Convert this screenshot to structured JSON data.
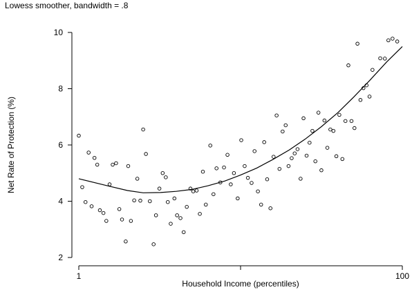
{
  "chart_data": {
    "type": "scatter",
    "subtitle": "Lowess smoother, bandwidth = .8",
    "xlabel": "Household Income (percentiles)",
    "ylabel": "Net Rate of Protection (%)",
    "x_scale": "log",
    "xlim": [
      1,
      100
    ],
    "ylim": [
      2,
      10
    ],
    "x_ticks": [
      {
        "value": 1,
        "label": "1"
      },
      {
        "value": 10,
        "label": ""
      },
      {
        "value": 100,
        "label": "100"
      }
    ],
    "y_ticks": [
      2,
      4,
      6,
      8,
      10
    ],
    "grid": false,
    "marker": "hollow-circle",
    "series": [
      {
        "kind": "points",
        "points": [
          {
            "x": 1,
            "y": 6.33
          },
          {
            "x": 1.05,
            "y": 4.5
          },
          {
            "x": 1.1,
            "y": 3.97
          },
          {
            "x": 1.15,
            "y": 5.73
          },
          {
            "x": 1.2,
            "y": 3.82
          },
          {
            "x": 1.25,
            "y": 5.54
          },
          {
            "x": 1.3,
            "y": 5.3
          },
          {
            "x": 1.35,
            "y": 3.68
          },
          {
            "x": 1.42,
            "y": 3.58
          },
          {
            "x": 1.48,
            "y": 3.3
          },
          {
            "x": 1.55,
            "y": 4.6
          },
          {
            "x": 1.62,
            "y": 5.3
          },
          {
            "x": 1.7,
            "y": 5.35
          },
          {
            "x": 1.78,
            "y": 3.72
          },
          {
            "x": 1.85,
            "y": 3.35
          },
          {
            "x": 1.95,
            "y": 2.57
          },
          {
            "x": 2.02,
            "y": 5.25
          },
          {
            "x": 2.1,
            "y": 3.3
          },
          {
            "x": 2.2,
            "y": 4.03
          },
          {
            "x": 2.3,
            "y": 4.8
          },
          {
            "x": 2.4,
            "y": 4.02
          },
          {
            "x": 2.5,
            "y": 6.55
          },
          {
            "x": 2.6,
            "y": 5.68
          },
          {
            "x": 2.75,
            "y": 4.0
          },
          {
            "x": 2.9,
            "y": 2.47
          },
          {
            "x": 3.0,
            "y": 3.5
          },
          {
            "x": 3.15,
            "y": 4.45
          },
          {
            "x": 3.3,
            "y": 5.0
          },
          {
            "x": 3.45,
            "y": 4.85
          },
          {
            "x": 3.55,
            "y": 3.97
          },
          {
            "x": 3.7,
            "y": 3.2
          },
          {
            "x": 3.9,
            "y": 4.1
          },
          {
            "x": 4.05,
            "y": 3.5
          },
          {
            "x": 4.25,
            "y": 3.4
          },
          {
            "x": 4.45,
            "y": 2.9
          },
          {
            "x": 4.65,
            "y": 3.8
          },
          {
            "x": 4.9,
            "y": 4.45
          },
          {
            "x": 5.1,
            "y": 4.35
          },
          {
            "x": 5.35,
            "y": 4.38
          },
          {
            "x": 5.6,
            "y": 3.55
          },
          {
            "x": 5.85,
            "y": 5.05
          },
          {
            "x": 6.1,
            "y": 3.88
          },
          {
            "x": 6.5,
            "y": 5.98
          },
          {
            "x": 6.8,
            "y": 4.25
          },
          {
            "x": 7.1,
            "y": 5.17
          },
          {
            "x": 7.5,
            "y": 4.67
          },
          {
            "x": 7.9,
            "y": 5.2
          },
          {
            "x": 8.3,
            "y": 5.65
          },
          {
            "x": 8.7,
            "y": 4.6
          },
          {
            "x": 9.1,
            "y": 5.0
          },
          {
            "x": 9.6,
            "y": 4.1
          },
          {
            "x": 10.1,
            "y": 6.17
          },
          {
            "x": 10.6,
            "y": 5.25
          },
          {
            "x": 11.1,
            "y": 4.83
          },
          {
            "x": 11.7,
            "y": 4.65
          },
          {
            "x": 12.2,
            "y": 5.78
          },
          {
            "x": 12.8,
            "y": 4.35
          },
          {
            "x": 13.4,
            "y": 3.88
          },
          {
            "x": 14.0,
            "y": 6.1
          },
          {
            "x": 14.6,
            "y": 4.78
          },
          {
            "x": 15.3,
            "y": 3.75
          },
          {
            "x": 16.0,
            "y": 5.58
          },
          {
            "x": 16.7,
            "y": 7.05
          },
          {
            "x": 17.4,
            "y": 5.15
          },
          {
            "x": 18.2,
            "y": 6.48
          },
          {
            "x": 19.0,
            "y": 6.7
          },
          {
            "x": 19.8,
            "y": 5.25
          },
          {
            "x": 20.7,
            "y": 5.53
          },
          {
            "x": 21.6,
            "y": 5.7
          },
          {
            "x": 22.5,
            "y": 5.85
          },
          {
            "x": 23.5,
            "y": 4.8
          },
          {
            "x": 24.5,
            "y": 6.95
          },
          {
            "x": 25.6,
            "y": 5.62
          },
          {
            "x": 26.7,
            "y": 6.08
          },
          {
            "x": 27.8,
            "y": 6.5
          },
          {
            "x": 29.0,
            "y": 5.42
          },
          {
            "x": 30.3,
            "y": 7.15
          },
          {
            "x": 31.6,
            "y": 5.1
          },
          {
            "x": 33.0,
            "y": 6.87
          },
          {
            "x": 34.4,
            "y": 5.9
          },
          {
            "x": 35.9,
            "y": 6.55
          },
          {
            "x": 37.5,
            "y": 6.5
          },
          {
            "x": 39.1,
            "y": 5.6
          },
          {
            "x": 40.8,
            "y": 7.07
          },
          {
            "x": 42.6,
            "y": 5.5
          },
          {
            "x": 44.5,
            "y": 6.85
          },
          {
            "x": 46.4,
            "y": 8.83
          },
          {
            "x": 48.5,
            "y": 6.85
          },
          {
            "x": 50.6,
            "y": 6.6
          },
          {
            "x": 52.8,
            "y": 9.6
          },
          {
            "x": 55.1,
            "y": 7.6
          },
          {
            "x": 57.5,
            "y": 8.02
          },
          {
            "x": 60.1,
            "y": 8.12
          },
          {
            "x": 62.7,
            "y": 7.72
          },
          {
            "x": 65.4,
            "y": 8.67
          },
          {
            "x": 73.0,
            "y": 9.08
          },
          {
            "x": 78.0,
            "y": 9.07
          },
          {
            "x": 82.0,
            "y": 9.72
          },
          {
            "x": 87.0,
            "y": 9.78
          },
          {
            "x": 93.0,
            "y": 9.68
          }
        ]
      },
      {
        "kind": "line",
        "points": [
          {
            "x": 1,
            "y": 4.8
          },
          {
            "x": 1.5,
            "y": 4.55
          },
          {
            "x": 2,
            "y": 4.38
          },
          {
            "x": 2.5,
            "y": 4.3
          },
          {
            "x": 3.2,
            "y": 4.31
          },
          {
            "x": 4,
            "y": 4.35
          },
          {
            "x": 5,
            "y": 4.42
          },
          {
            "x": 6.3,
            "y": 4.55
          },
          {
            "x": 8,
            "y": 4.72
          },
          {
            "x": 10,
            "y": 4.93
          },
          {
            "x": 12.6,
            "y": 5.18
          },
          {
            "x": 15.8,
            "y": 5.48
          },
          {
            "x": 20,
            "y": 5.82
          },
          {
            "x": 25,
            "y": 6.2
          },
          {
            "x": 31.6,
            "y": 6.65
          },
          {
            "x": 40,
            "y": 7.15
          },
          {
            "x": 50,
            "y": 7.7
          },
          {
            "x": 63,
            "y": 8.3
          },
          {
            "x": 80,
            "y": 8.95
          },
          {
            "x": 100,
            "y": 9.5
          }
        ]
      }
    ]
  }
}
